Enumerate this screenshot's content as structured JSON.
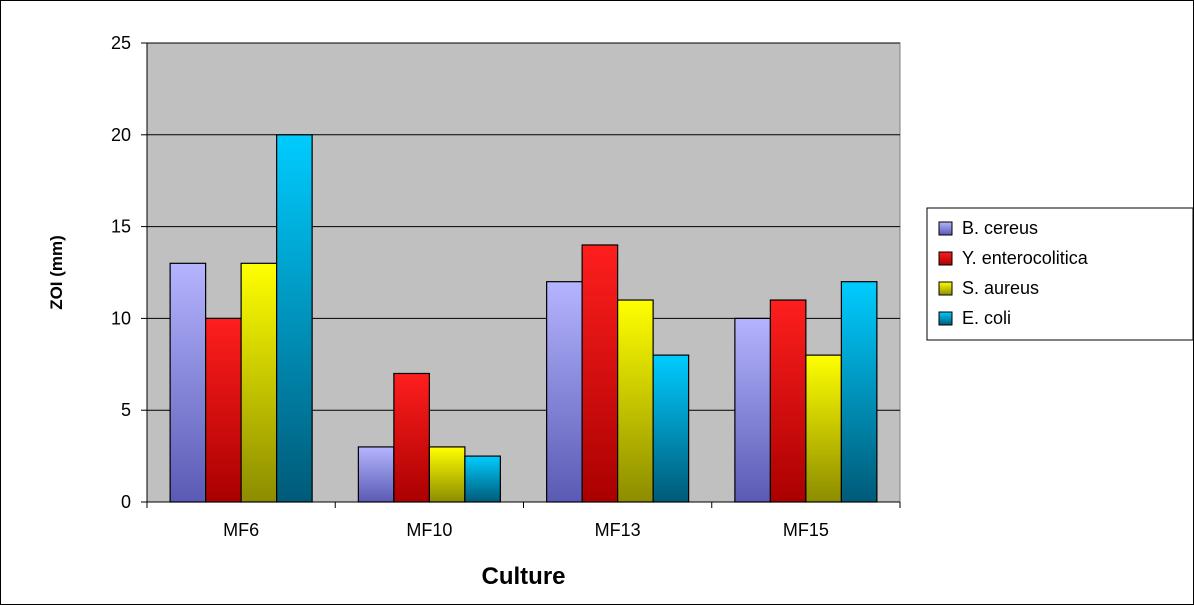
{
  "chart_data": {
    "type": "bar",
    "title": "",
    "xlabel": "Culture",
    "ylabel": "ZOI (mm)",
    "categories": [
      "MF6",
      "MF10",
      "MF13",
      "MF15"
    ],
    "series": [
      {
        "name": "B. cereus",
        "values": [
          13,
          3,
          12,
          10
        ],
        "color_light": "#b4b4ff",
        "color_dark": "#5a5ab4"
      },
      {
        "name": "Y. enterocolitica",
        "values": [
          10,
          7,
          14,
          11
        ],
        "color_light": "#ff1e1e",
        "color_dark": "#aa0000"
      },
      {
        "name": "S. aureus",
        "values": [
          13,
          3,
          11,
          8
        ],
        "color_light": "#ffff00",
        "color_dark": "#8c8c00"
      },
      {
        "name": "E. coli",
        "values": [
          20,
          2.5,
          8,
          12
        ],
        "color_light": "#00ccff",
        "color_dark": "#005a78"
      }
    ],
    "ylim": [
      0,
      25
    ],
    "yticks": [
      0,
      5,
      10,
      15,
      20,
      25
    ],
    "grid": true,
    "legend_position": "right",
    "plot_background": "#c0c0c0"
  }
}
